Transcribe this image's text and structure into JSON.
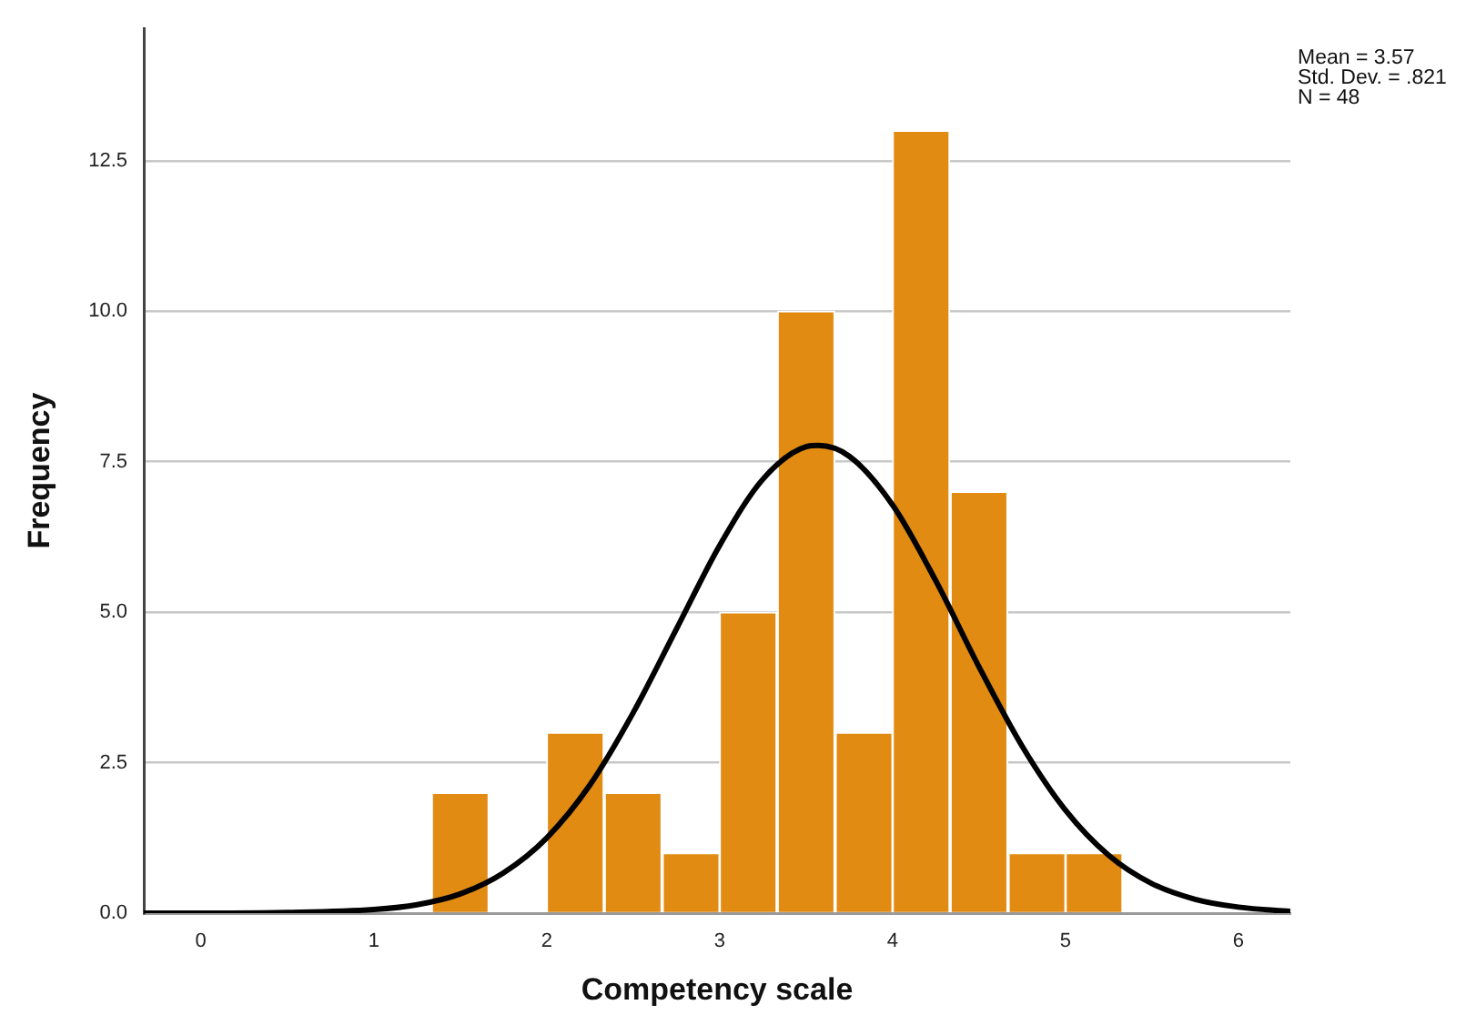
{
  "chart_data": {
    "type": "histogram",
    "xlabel": "Competency scale",
    "ylabel": "Frequency",
    "annotations": [
      "Mean = 3.57",
      "Std. Dev. = .821",
      "N = 48"
    ],
    "bins": [
      1.33,
      1.67,
      2,
      2.33,
      2.67,
      3,
      3.33,
      3.67,
      4,
      4.33,
      4.67,
      5,
      5.33
    ],
    "series": [
      {
        "type": "histogram",
        "color": "#e18b12",
        "values": [
          2,
          0,
          3,
          2,
          1,
          5,
          10,
          3,
          13,
          7,
          1,
          1
        ]
      },
      {
        "type": "line",
        "color": "#000000",
        "x": [
          -0.33,
          0,
          0.5,
          1,
          1.25,
          1.5,
          1.75,
          2,
          2.25,
          2.5,
          2.75,
          3,
          3.25,
          3.5,
          3.57,
          3.75,
          4,
          4.25,
          4.5,
          4.75,
          5,
          5.25,
          5.5,
          5.75,
          6,
          6.3
        ],
        "values": [
          0,
          0,
          0.01,
          0.06,
          0.14,
          0.32,
          0.67,
          1.25,
          2.13,
          3.33,
          4.72,
          6.11,
          7.21,
          7.75,
          7.77,
          7.59,
          6.78,
          5.52,
          4.09,
          2.77,
          1.71,
          0.96,
          0.49,
          0.23,
          0.1,
          0.03
        ]
      }
    ],
    "xlim": [
      -0.33,
      6.3
    ],
    "xticks": [
      0,
      1,
      2,
      3,
      4,
      5,
      6
    ],
    "ylim": [
      0,
      14.7
    ],
    "yticks": [
      {
        "value": 0,
        "label": "0.0"
      },
      2.5,
      {
        "value": 5,
        "label": "5.0"
      },
      7.5,
      {
        "value": 10,
        "label": "10.0"
      },
      12.5
    ],
    "grid": "y"
  }
}
